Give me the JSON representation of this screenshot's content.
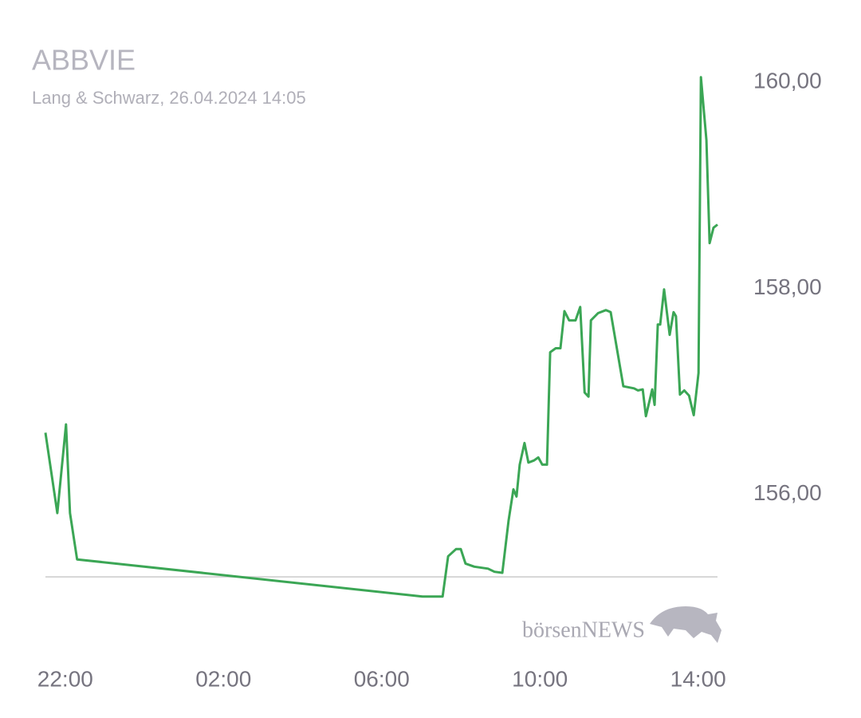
{
  "chart_data": {
    "type": "line",
    "title": "ABBVIE",
    "subtitle": "Lang & Schwarz, 26.04.2024 14:05",
    "watermark": "börsenNEWS",
    "x": [
      -0.5,
      -0.2,
      0.02,
      0.12,
      0.3,
      9.03,
      9.54,
      9.68,
      9.88,
      10.0,
      10.12,
      10.34,
      10.69,
      10.85,
      11.05,
      11.21,
      11.33,
      11.41,
      11.49,
      11.61,
      11.71,
      11.85,
      11.96,
      12.06,
      12.18,
      12.26,
      12.4,
      12.52,
      12.62,
      12.74,
      12.9,
      13.02,
      13.13,
      13.23,
      13.29,
      13.47,
      13.67,
      13.79,
      14.11,
      14.38,
      14.48,
      14.6,
      14.68,
      14.84,
      14.9,
      14.98,
      15.04,
      15.14,
      15.28,
      15.38,
      15.44,
      15.54,
      15.65,
      15.77,
      15.89,
      16.01,
      16.07,
      16.21,
      16.29,
      16.39,
      16.49
    ],
    "series": [
      {
        "color": "#3ba655",
        "values": [
          156.6,
          155.82,
          156.68,
          155.82,
          155.37,
          155.01,
          155.01,
          155.4,
          155.47,
          155.47,
          155.33,
          155.3,
          155.28,
          155.25,
          155.24,
          155.75,
          156.05,
          155.98,
          156.29,
          156.5,
          156.31,
          156.33,
          156.36,
          156.29,
          156.29,
          157.38,
          157.42,
          157.42,
          157.78,
          157.69,
          157.69,
          157.82,
          156.99,
          156.95,
          157.69,
          157.76,
          157.79,
          157.77,
          157.05,
          157.03,
          157.01,
          157.02,
          156.76,
          157.02,
          156.87,
          157.65,
          157.65,
          157.99,
          157.55,
          157.77,
          157.73,
          156.97,
          157.01,
          156.96,
          156.77,
          157.18,
          160.05,
          159.44,
          158.44,
          158.59,
          158.62
        ]
      }
    ],
    "baseline": 155.2,
    "xlim": [
      -0.5,
      16.49
    ],
    "ylim": [
      154.76,
      160.18
    ],
    "xticks": [
      {
        "value": 0,
        "label": "22:00"
      },
      {
        "value": 4,
        "label": "02:00"
      },
      {
        "value": 8,
        "label": "06:00"
      },
      {
        "value": 12,
        "label": "10:00"
      },
      {
        "value": 16,
        "label": "14:00"
      }
    ],
    "yticks": [
      {
        "value": 156,
        "label": "156,00"
      },
      {
        "value": 158,
        "label": "158,00"
      },
      {
        "value": 160,
        "label": "160,00"
      }
    ],
    "grid": false
  }
}
